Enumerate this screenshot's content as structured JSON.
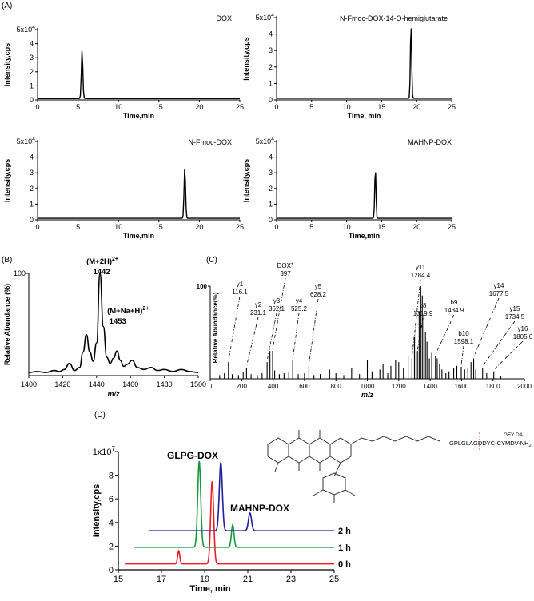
{
  "panel_labels": {
    "A": "(A)",
    "B": "(B)",
    "C": "(C)",
    "D": "(D)"
  },
  "chart_data": [
    {
      "id": "A1",
      "type": "line",
      "title": "DOX",
      "xlabel": "Time,min",
      "ylabel": "Intensity,cps",
      "xlim": [
        0,
        25
      ],
      "ylim": [
        0,
        50000
      ],
      "x_ticks": [
        "0",
        "5",
        "10",
        "15",
        "20",
        "25"
      ],
      "y_ticks": [
        "0",
        "1",
        "2",
        "3",
        "4",
        "5x10^4"
      ],
      "y_scale_label": "5x10",
      "y_scale_exp": "4",
      "series": [
        {
          "baseline": 1000,
          "peaks": [
            {
              "x": 5.5,
              "y": 35500
            }
          ]
        }
      ]
    },
    {
      "id": "A2",
      "type": "line",
      "title": "N-Fmoc-DOX-14-O-hemiglutarate",
      "xlabel": "Time, min",
      "ylabel": "Intensity,cps",
      "xlim": [
        0,
        25
      ],
      "ylim": [
        0,
        50000
      ],
      "x_ticks": [
        "0",
        "5",
        "10",
        "15",
        "20",
        "25"
      ],
      "y_ticks": [
        "0",
        "1",
        "2",
        "3",
        "4",
        "5x10^4"
      ],
      "y_scale_label": "5x10",
      "y_scale_exp": "4",
      "series": [
        {
          "baseline": 1000,
          "peaks": [
            {
              "x": 19.2,
              "y": 46000
            }
          ]
        }
      ]
    },
    {
      "id": "A3",
      "type": "line",
      "title": "N-Fmoc-DOX",
      "xlabel": "Time,min",
      "ylabel": "Intensity,cps",
      "xlim": [
        0,
        25
      ],
      "ylim": [
        0,
        50000
      ],
      "x_ticks": [
        "0",
        "5",
        "10",
        "15",
        "20",
        "25"
      ],
      "y_ticks": [
        "0",
        "1",
        "2",
        "3",
        "4",
        "5x10^4"
      ],
      "y_scale_label": "5x10",
      "y_scale_exp": "4",
      "series": [
        {
          "baseline": 1000,
          "peaks": [
            {
              "x": 18.2,
              "y": 33500
            }
          ]
        }
      ]
    },
    {
      "id": "A4",
      "type": "line",
      "title": "MAHNP-DOX",
      "xlabel": "Time,min",
      "ylabel": "Intensity,cps",
      "xlim": [
        0,
        25
      ],
      "ylim": [
        0,
        50000
      ],
      "x_ticks": [
        "0",
        "5",
        "10",
        "15",
        "20",
        "25"
      ],
      "y_ticks": [
        "0",
        "1",
        "2",
        "3",
        "4",
        "5x10^4"
      ],
      "y_scale_label": "5x10",
      "y_scale_exp": "4",
      "series": [
        {
          "baseline": 1000,
          "peaks": [
            {
              "x": 14.1,
              "y": 32500
            }
          ]
        }
      ]
    },
    {
      "id": "B",
      "type": "line",
      "xlabel": "m/z",
      "ylabel": "Relative Abundance (%)",
      "xlim": [
        1400,
        1500
      ],
      "ylim": [
        0,
        100
      ],
      "x_ticks": [
        "1400",
        "1420",
        "1440",
        "1460",
        "1480",
        "1500"
      ],
      "y_tick_label": "100",
      "annotations": [
        {
          "text": "(M+2H)",
          "sup": "2+",
          "value": "1442",
          "x": 1442,
          "y": 100
        },
        {
          "text": "(M+Na+H)",
          "sup": "2+",
          "value": "1453",
          "x": 1452,
          "y": 34
        }
      ],
      "points": [
        [
          1400,
          3
        ],
        [
          1405,
          4
        ],
        [
          1410,
          3
        ],
        [
          1415,
          5
        ],
        [
          1418,
          4
        ],
        [
          1421,
          6
        ],
        [
          1424,
          12
        ],
        [
          1427,
          5
        ],
        [
          1430,
          8
        ],
        [
          1432,
          23
        ],
        [
          1434,
          40
        ],
        [
          1436,
          23
        ],
        [
          1438,
          14
        ],
        [
          1440,
          32
        ],
        [
          1442,
          100
        ],
        [
          1444,
          48
        ],
        [
          1446,
          18
        ],
        [
          1448,
          12
        ],
        [
          1450,
          17
        ],
        [
          1452,
          24
        ],
        [
          1454,
          15
        ],
        [
          1456,
          9
        ],
        [
          1458,
          11
        ],
        [
          1461,
          15
        ],
        [
          1464,
          8
        ],
        [
          1468,
          6
        ],
        [
          1472,
          8
        ],
        [
          1476,
          5
        ],
        [
          1480,
          6
        ],
        [
          1485,
          4
        ],
        [
          1490,
          6
        ],
        [
          1495,
          4
        ],
        [
          1500,
          3
        ]
      ]
    },
    {
      "id": "C",
      "type": "bar",
      "xlabel": "m/z",
      "ylabel": "Relative Abundance(%)",
      "xlim": [
        0,
        2000
      ],
      "ylim": [
        0,
        100
      ],
      "x_ticks": [
        "0",
        "200",
        "400",
        "600",
        "800",
        "1000",
        "1200",
        "1400",
        "1600",
        "1800",
        "2000"
      ],
      "y_tick_label": "100",
      "labeled_peaks": [
        {
          "label": "y1",
          "value": "116.1",
          "mz": 116.1,
          "intensity": 18
        },
        {
          "label": "y2",
          "value": "231.1",
          "mz": 231.1,
          "intensity": 12
        },
        {
          "label": "y3",
          "value": "362.1",
          "mz": 362.1,
          "intensity": 18
        },
        {
          "label": "DOX",
          "sup": "+",
          "value": "397",
          "mz": 397,
          "intensity": 30
        },
        {
          "label": "y4",
          "value": "525.2",
          "mz": 525.2,
          "intensity": 20
        },
        {
          "label": "y5",
          "value": "628.2",
          "mz": 628.2,
          "intensity": 14
        },
        {
          "label": "y11",
          "value": "1284.4",
          "mz": 1284.4,
          "intensity": 22
        },
        {
          "label": "b8",
          "value": "1319.9",
          "mz": 1319.9,
          "intensity": 30
        },
        {
          "label": "b9",
          "value": "1434.9",
          "mz": 1434.9,
          "intensity": 25
        },
        {
          "label": "b10",
          "value": "1598.1",
          "mz": 1598.1,
          "intensity": 13
        },
        {
          "label": "y14",
          "value": "1677.5",
          "mz": 1677.5,
          "intensity": 22
        },
        {
          "label": "y15",
          "value": "1734.5",
          "mz": 1734.5,
          "intensity": 12
        },
        {
          "label": "y16",
          "value": "1805.6",
          "mz": 1805.6,
          "intensity": 8
        }
      ],
      "peaks": [
        [
          60,
          4
        ],
        [
          90,
          6
        ],
        [
          116,
          18
        ],
        [
          140,
          5
        ],
        [
          180,
          4
        ],
        [
          210,
          7
        ],
        [
          231,
          12
        ],
        [
          260,
          5
        ],
        [
          300,
          4
        ],
        [
          330,
          6
        ],
        [
          362,
          18
        ],
        [
          380,
          30
        ],
        [
          397,
          30
        ],
        [
          410,
          9
        ],
        [
          440,
          5
        ],
        [
          470,
          6
        ],
        [
          500,
          7
        ],
        [
          525,
          20
        ],
        [
          560,
          5
        ],
        [
          600,
          6
        ],
        [
          628,
          14
        ],
        [
          660,
          4
        ],
        [
          700,
          5
        ],
        [
          760,
          10
        ],
        [
          800,
          6
        ],
        [
          850,
          4
        ],
        [
          900,
          12
        ],
        [
          950,
          5
        ],
        [
          1000,
          20
        ],
        [
          1030,
          8
        ],
        [
          1080,
          10
        ],
        [
          1100,
          16
        ],
        [
          1130,
          6
        ],
        [
          1150,
          14
        ],
        [
          1180,
          20
        ],
        [
          1200,
          18
        ],
        [
          1230,
          12
        ],
        [
          1260,
          24
        ],
        [
          1284,
          22
        ],
        [
          1300,
          45
        ],
        [
          1310,
          60
        ],
        [
          1319,
          30
        ],
        [
          1330,
          72
        ],
        [
          1340,
          100
        ],
        [
          1350,
          90
        ],
        [
          1360,
          70
        ],
        [
          1370,
          50
        ],
        [
          1380,
          40
        ],
        [
          1395,
          22
        ],
        [
          1410,
          28
        ],
        [
          1434,
          25
        ],
        [
          1445,
          22
        ],
        [
          1460,
          16
        ],
        [
          1475,
          10
        ],
        [
          1500,
          6
        ],
        [
          1520,
          8
        ],
        [
          1550,
          12
        ],
        [
          1570,
          14
        ],
        [
          1598,
          13
        ],
        [
          1620,
          10
        ],
        [
          1640,
          12
        ],
        [
          1660,
          18
        ],
        [
          1677,
          22
        ],
        [
          1690,
          10
        ],
        [
          1734,
          12
        ],
        [
          1760,
          6
        ],
        [
          1805,
          8
        ],
        [
          1850,
          3
        ]
      ]
    },
    {
      "id": "D",
      "type": "line",
      "xlabel": "Time, min",
      "ylabel": "Intensity,cps",
      "xlim": [
        15,
        25
      ],
      "ylim": [
        0,
        10000000
      ],
      "x_ticks": [
        "15",
        "17",
        "19",
        "21",
        "23",
        "25"
      ],
      "y_ticks": [
        "0",
        "2",
        "4",
        "6",
        "8",
        "1x10^7"
      ],
      "y_scale_label": "1x10",
      "y_scale_exp": "7",
      "annotations": [
        {
          "text": "GLPG-DOX",
          "x": 19.7,
          "y": 8200000
        },
        {
          "text": "MAHNP-DOX",
          "x": 21.1,
          "y": 4200000
        }
      ],
      "series": [
        {
          "name": "0 h",
          "color": "#ee1c25",
          "baseline": 500000,
          "start": 15.3,
          "peaks": [
            {
              "x": 17.8,
              "y": 1100000,
              "w": 0.05
            },
            {
              "x": 19.35,
              "y": 7000000,
              "w": 0.07
            }
          ]
        },
        {
          "name": "1 h",
          "color": "#119a3a",
          "baseline": 1900000,
          "start": 15.75,
          "peaks": [
            {
              "x": 18.75,
              "y": 7300000,
              "w": 0.07
            },
            {
              "x": 20.3,
              "y": 1900000,
              "w": 0.06
            }
          ]
        },
        {
          "name": "2 h",
          "color": "#1f1f9a",
          "baseline": 3300000,
          "start": 16.4,
          "peaks": [
            {
              "x": 19.75,
              "y": 5800000,
              "w": 0.07
            },
            {
              "x": 21.1,
              "y": 1500000,
              "w": 0.07
            }
          ]
        }
      ]
    }
  ],
  "structure_inset": {
    "sequence_text": "GPLGLAGDDYC-CYMDV-NH",
    "sequence_sub": "2",
    "branch_text": "GFY DA"
  }
}
